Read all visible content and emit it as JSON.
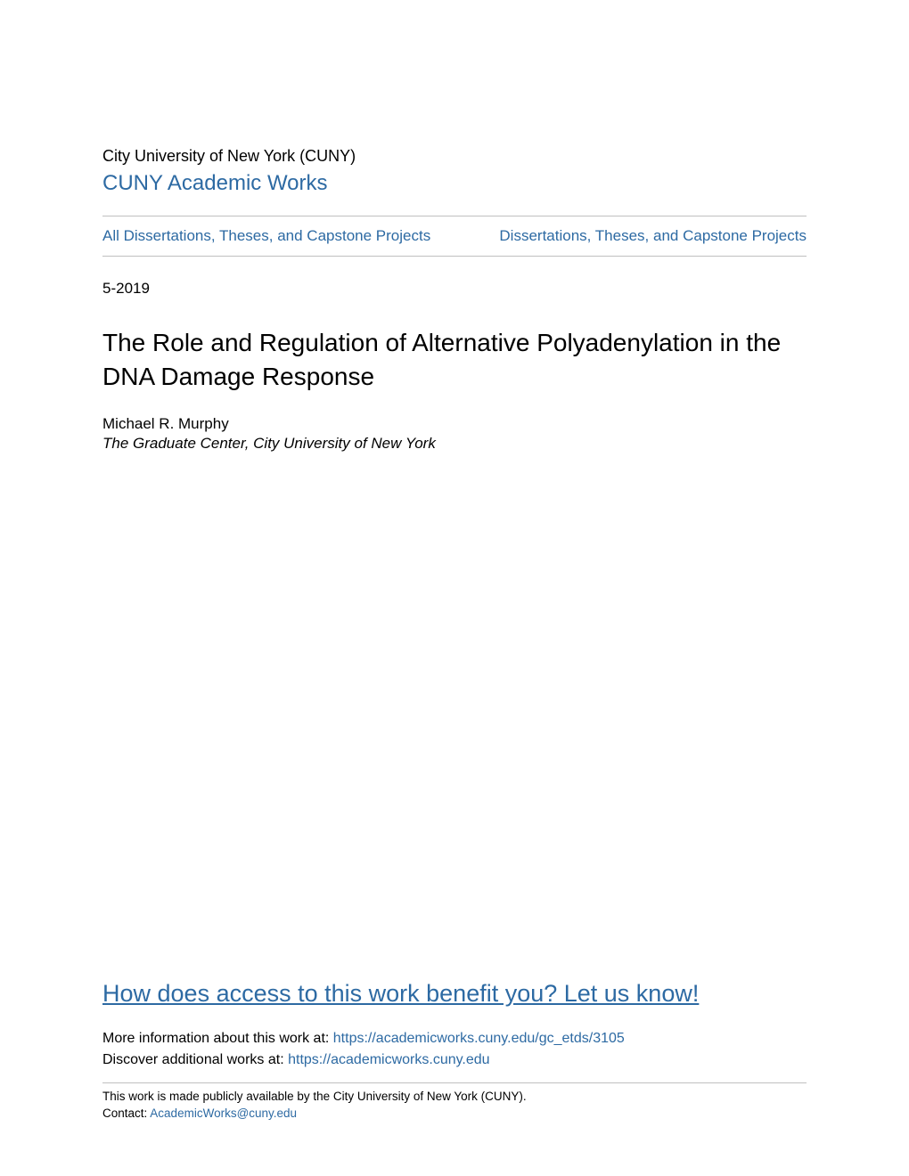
{
  "header": {
    "institution": "City University of New York (CUNY)",
    "repository": "CUNY Academic Works"
  },
  "nav": {
    "left_link": "All Dissertations, Theses, and Capstone Projects",
    "right_link": "Dissertations, Theses, and Capstone Projects"
  },
  "document": {
    "date": "5-2019",
    "title": "The Role and Regulation of Alternative Polyadenylation in the DNA Damage Response",
    "author": "Michael R. Murphy",
    "affiliation": "The Graduate Center, City University of New York"
  },
  "cta": {
    "text": "How does access to this work benefit you? Let us know!"
  },
  "info": {
    "more_info_prefix": "More information about this work at: ",
    "more_info_link": "https://academicworks.cuny.edu/gc_etds/3105",
    "discover_prefix": "Discover additional works at: ",
    "discover_link": "https://academicworks.cuny.edu"
  },
  "footer": {
    "availability": "This work is made publicly available by the City University of New York (CUNY).",
    "contact_prefix": "Contact: ",
    "contact_email": "AcademicWorks@cuny.edu"
  },
  "styling": {
    "link_color": "#2d6aa3",
    "text_color": "#000000",
    "divider_color": "#c0c0c0",
    "background_color": "#ffffff",
    "title_fontsize": 28,
    "body_fontsize": 17,
    "cta_fontsize": 27,
    "footer_fontsize": 13.5,
    "repo_fontsize": 24,
    "institution_fontsize": 18
  }
}
